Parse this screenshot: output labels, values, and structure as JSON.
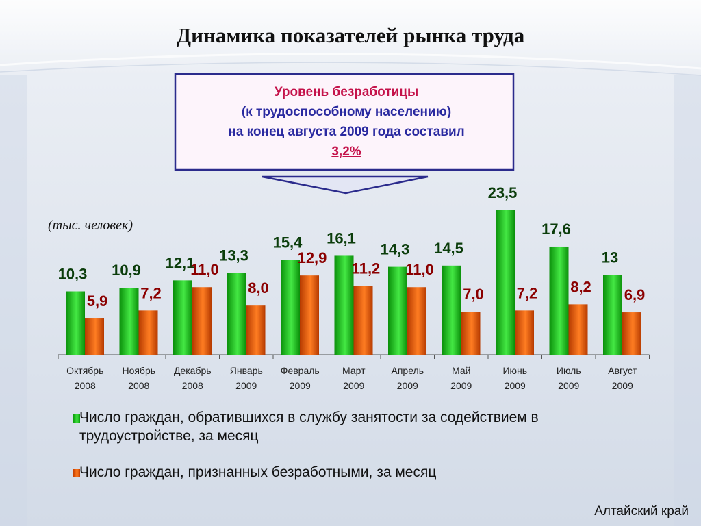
{
  "title": "Динамика показателей рынка труда",
  "callout": {
    "line1": "Уровень безработицы",
    "line2": "(к трудоспособному населению)",
    "line3": "на конец августа 2009 года составил",
    "value": "3,2%"
  },
  "unit_label": "(тыс. человек)",
  "legend": [
    {
      "label": "Число граждан, обратившихся в службу занятости за содействием в трудоустройстве, за месяц",
      "color": "#22c822"
    },
    {
      "label": "Число граждан, признанных безработными, за месяц",
      "color": "#e8560a"
    }
  ],
  "footer": "Алтайский край",
  "chart_data": {
    "type": "bar",
    "categories": [
      [
        "Октябрь",
        "2008"
      ],
      [
        "Ноябрь",
        "2008"
      ],
      [
        "Декабрь",
        "2008"
      ],
      [
        "Январь",
        "2009"
      ],
      [
        "Февраль",
        "2009"
      ],
      [
        "Март",
        "2009"
      ],
      [
        "Апрель",
        "2009"
      ],
      [
        "Май",
        "2009"
      ],
      [
        "Июнь",
        "2009"
      ],
      [
        "Июль",
        "2009"
      ],
      [
        "Август",
        "2009"
      ]
    ],
    "series": [
      {
        "values": [
          10.3,
          10.9,
          12.1,
          13.3,
          15.4,
          16.1,
          14.3,
          14.5,
          23.5,
          17.6,
          13
        ],
        "labels": [
          "10,3",
          "10,9",
          "12,1",
          "13,3",
          "15,4",
          "16,1",
          "14,3",
          "14,5",
          "23,5",
          "17,6",
          "13"
        ],
        "color": "#22c822",
        "label_color": "#0b3d0b"
      },
      {
        "values": [
          5.9,
          7.2,
          11.0,
          8.0,
          12.9,
          11.2,
          11.0,
          7.0,
          7.2,
          8.2,
          6.9
        ],
        "labels": [
          "5,9",
          "7,2",
          "11,0",
          "8,0",
          "12,9",
          "11,2",
          "11,0",
          "7,0",
          "7,2",
          "8,2",
          "6,9"
        ],
        "color": "#e8560a",
        "label_color": "#8b0000"
      }
    ],
    "ylim": [
      0,
      23.5
    ],
    "grid": false,
    "legend_position": "bottom"
  }
}
